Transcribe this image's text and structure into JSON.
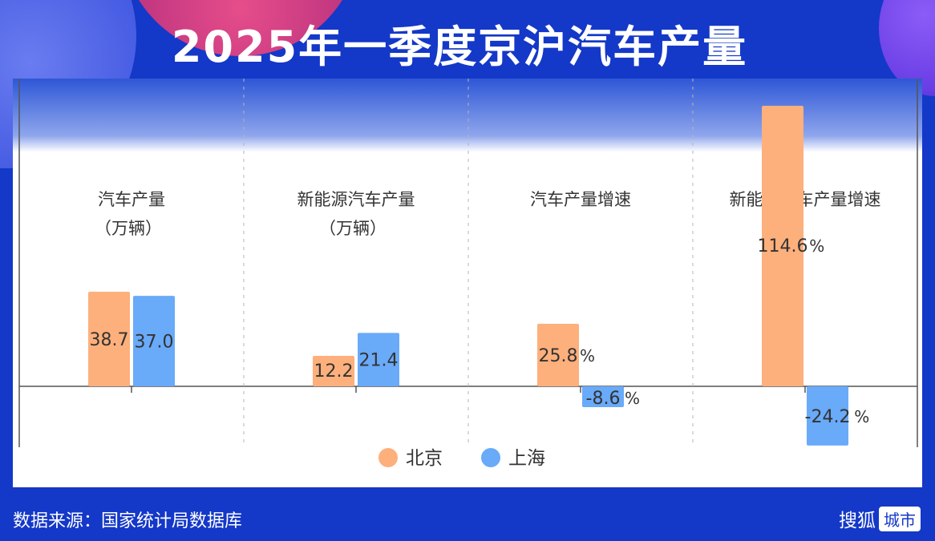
{
  "header": {
    "title": "2025年一季度京沪汽车产量"
  },
  "footer": {
    "source": "数据来源：国家统计局数据库",
    "brand_name": "搜狐",
    "brand_tag": "城市"
  },
  "colors": {
    "beijing": "#fdb07c",
    "shanghai": "#69aaf9",
    "background": "#1438c8"
  },
  "chart_data": {
    "type": "bar",
    "title": "2025年一季度京沪汽车产量",
    "groups": [
      {
        "label": "汽车产量",
        "label2": "（万辆）",
        "unit": "",
        "values": [
          38.7,
          37.0
        ],
        "labels": [
          "38.7",
          "37.0"
        ]
      },
      {
        "label": "新能源汽车产量",
        "label2": "（万辆）",
        "unit": "",
        "values": [
          12.2,
          21.4
        ],
        "labels": [
          "12.2",
          "21.4"
        ]
      },
      {
        "label": "汽车产量增速",
        "label2": "",
        "unit": "%",
        "values": [
          25.8,
          -8.6
        ],
        "labels": [
          "25.8",
          "-8.6"
        ]
      },
      {
        "label": "新能源汽车产量增速",
        "label2": "",
        "unit": "%",
        "values": [
          114.6,
          -24.2
        ],
        "labels": [
          "114.6",
          "-24.2"
        ]
      }
    ],
    "series": [
      {
        "name": "北京",
        "color": "#fdb07c"
      },
      {
        "name": "上海",
        "color": "#69aaf9"
      }
    ],
    "legend": "bottom-center",
    "grid": false
  }
}
